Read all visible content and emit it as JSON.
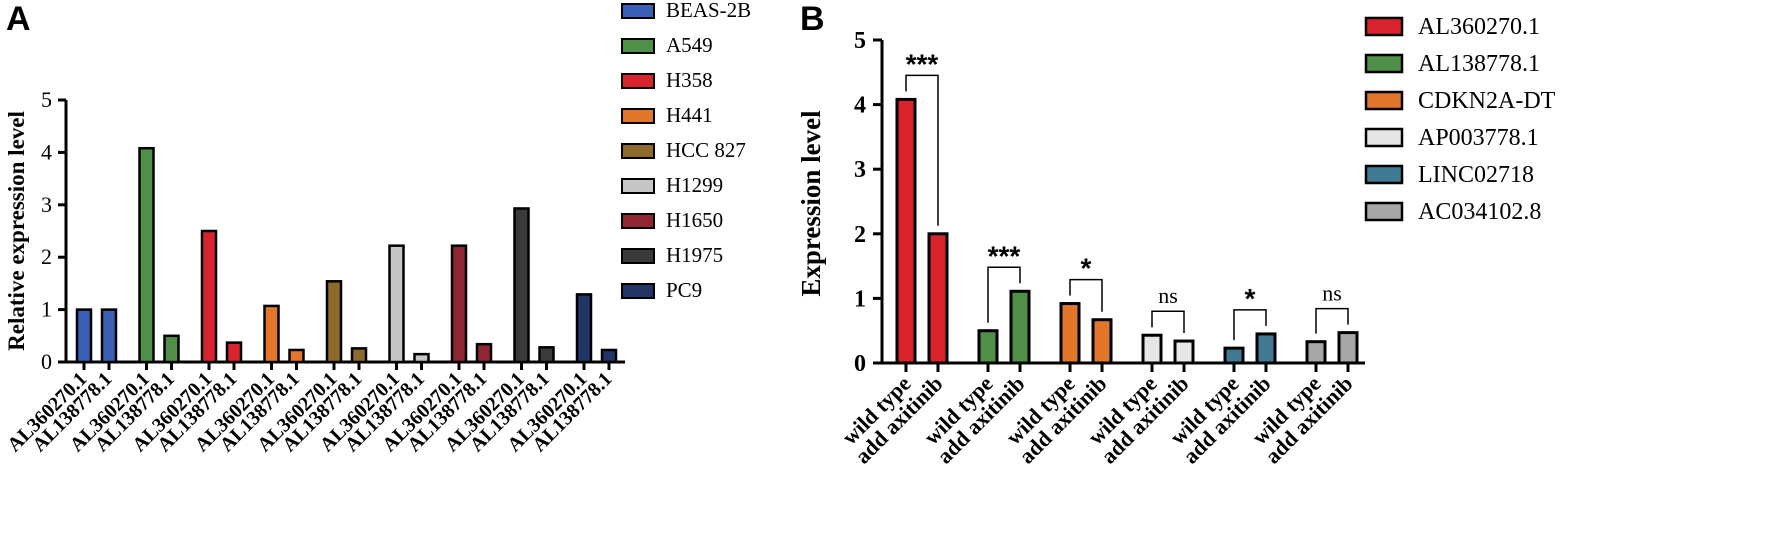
{
  "chart_data": [
    {
      "panel": "A",
      "type": "bar",
      "ylabel": "Relative expression level",
      "xlabel": "",
      "ylim": [
        0,
        5
      ],
      "yticks": [
        "0",
        "1",
        "2",
        "3",
        "4",
        "5"
      ],
      "legend": [
        "BEAS-2B",
        "A549",
        "H358",
        "H441",
        "HCC 827",
        "H1299",
        "H1650",
        "H1975",
        "PC9"
      ],
      "colors": [
        "#3b5fb5",
        "#4f8f47",
        "#d9232d",
        "#e2762a",
        "#8c6a2c",
        "#c6c6c6",
        "#8e2633",
        "#3a3a3a",
        "#233566"
      ],
      "tick_labels": [
        "AL360270.1",
        "AL138778.1"
      ],
      "series": [
        {
          "name": "BEAS-2B",
          "values": [
            1.0,
            1.0
          ]
        },
        {
          "name": "A549",
          "values": [
            4.08,
            0.5
          ]
        },
        {
          "name": "H358",
          "values": [
            2.5,
            0.37
          ]
        },
        {
          "name": "H441",
          "values": [
            1.07,
            0.23
          ]
        },
        {
          "name": "HCC 827",
          "values": [
            1.54,
            0.26
          ]
        },
        {
          "name": "H1299",
          "values": [
            2.22,
            0.15
          ]
        },
        {
          "name": "H1650",
          "values": [
            2.22,
            0.34
          ]
        },
        {
          "name": "H1975",
          "values": [
            2.93,
            0.28
          ]
        },
        {
          "name": "PC9",
          "values": [
            1.29,
            0.23
          ]
        }
      ]
    },
    {
      "panel": "B",
      "type": "bar",
      "ylabel": "Expression level",
      "xlabel": "",
      "ylim": [
        0,
        5
      ],
      "yticks": [
        "0",
        "1",
        "2",
        "3",
        "4",
        "5"
      ],
      "legend": [
        "AL360270.1",
        "AL138778.1",
        "CDKN2A-DT",
        "AP003778.1",
        "LINC02718",
        "AC034102.8"
      ],
      "colors": [
        "#d9232d",
        "#4f8f47",
        "#e2762a",
        "#e6e6e6",
        "#3f7a92",
        "#a8a8a8"
      ],
      "tick_labels": [
        "wild type",
        "add axitinib"
      ],
      "series": [
        {
          "name": "AL360270.1",
          "values": [
            4.08,
            2.0
          ],
          "significance": "***"
        },
        {
          "name": "AL138778.1",
          "values": [
            0.5,
            1.11
          ],
          "significance": "***"
        },
        {
          "name": "CDKN2A-DT",
          "values": [
            0.92,
            0.67
          ],
          "significance": "*"
        },
        {
          "name": "AP003778.1",
          "values": [
            0.43,
            0.34
          ],
          "significance": "ns"
        },
        {
          "name": "LINC02718",
          "values": [
            0.23,
            0.45
          ],
          "significance": "*"
        },
        {
          "name": "AC034102.8",
          "values": [
            0.33,
            0.47
          ],
          "significance": "ns"
        }
      ]
    }
  ],
  "panels": {
    "a": "A",
    "b": "B"
  }
}
